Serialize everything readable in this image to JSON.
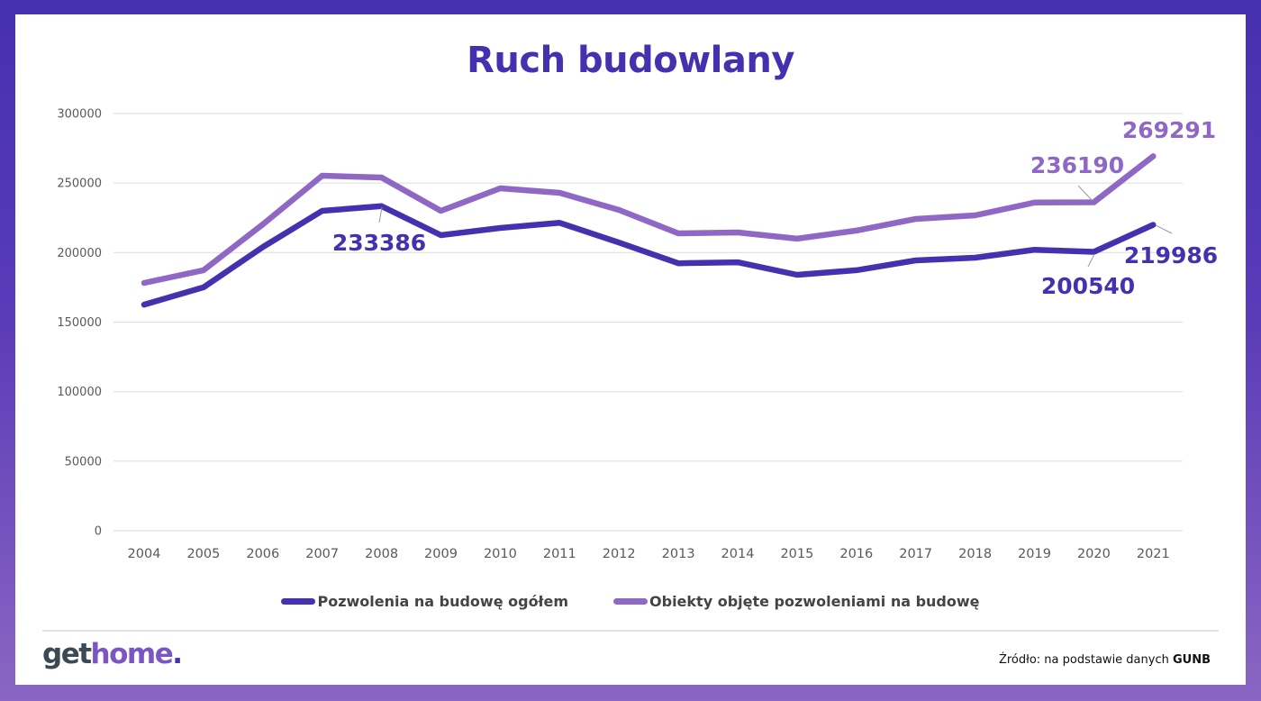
{
  "title": "Ruch budowlany",
  "legend": [
    {
      "label": "Pozwolenia na budowę ogółem",
      "color": "#4530b0"
    },
    {
      "label": "Obiekty objęte pozwoleniami na budowę",
      "color": "#8e68c4"
    }
  ],
  "footer": {
    "logo_get": "get",
    "logo_home": "home",
    "logo_dot": ".",
    "source_prefix": "Źródło: na podstawie danych",
    "source_name": "GUNB"
  },
  "colors": {
    "frame_top": "#4530b0",
    "frame_bottom": "#8a66c2",
    "series_dark": "#4530b0",
    "series_light": "#8e68c4",
    "grid": "#e0e0e0",
    "axis_text": "#595959"
  },
  "chart_data": {
    "type": "line",
    "title": "Ruch budowlany",
    "xlabel": "",
    "ylabel": "",
    "ylim": [
      0,
      300000
    ],
    "yticks": [
      0,
      50000,
      100000,
      150000,
      200000,
      250000,
      300000
    ],
    "ytick_labels": [
      "0",
      "50000",
      "100000",
      "150000",
      "200000",
      "250000",
      "300000"
    ],
    "grid": true,
    "legend_position": "bottom",
    "categories": [
      "2004",
      "2005",
      "2006",
      "2007",
      "2008",
      "2009",
      "2010",
      "2011",
      "2012",
      "2013",
      "2014",
      "2015",
      "2016",
      "2017",
      "2018",
      "2019",
      "2020",
      "2021"
    ],
    "series": [
      {
        "name": "Pozwolenia na budowę ogółem",
        "color": "#4530b0",
        "values": [
          162600,
          175000,
          204000,
          230000,
          233386,
          212500,
          217700,
          221400,
          207200,
          192300,
          193000,
          184000,
          187300,
          194400,
          196300,
          202000,
          200540,
          219986
        ]
      },
      {
        "name": "Obiekty objęte pozwoleniami na budowę",
        "color": "#8e68c4",
        "values": [
          178200,
          187300,
          220300,
          255300,
          254000,
          230000,
          246200,
          243000,
          230700,
          213800,
          214500,
          210000,
          215800,
          224200,
          226800,
          236000,
          236190,
          269291
        ]
      }
    ],
    "annotations": [
      {
        "series": 0,
        "category": "2008",
        "text": "233386"
      },
      {
        "series": 0,
        "category": "2020",
        "text": "200540"
      },
      {
        "series": 0,
        "category": "2021",
        "text": "219986"
      },
      {
        "series": 1,
        "category": "2020",
        "text": "236190"
      },
      {
        "series": 1,
        "category": "2021",
        "text": "269291"
      }
    ]
  }
}
